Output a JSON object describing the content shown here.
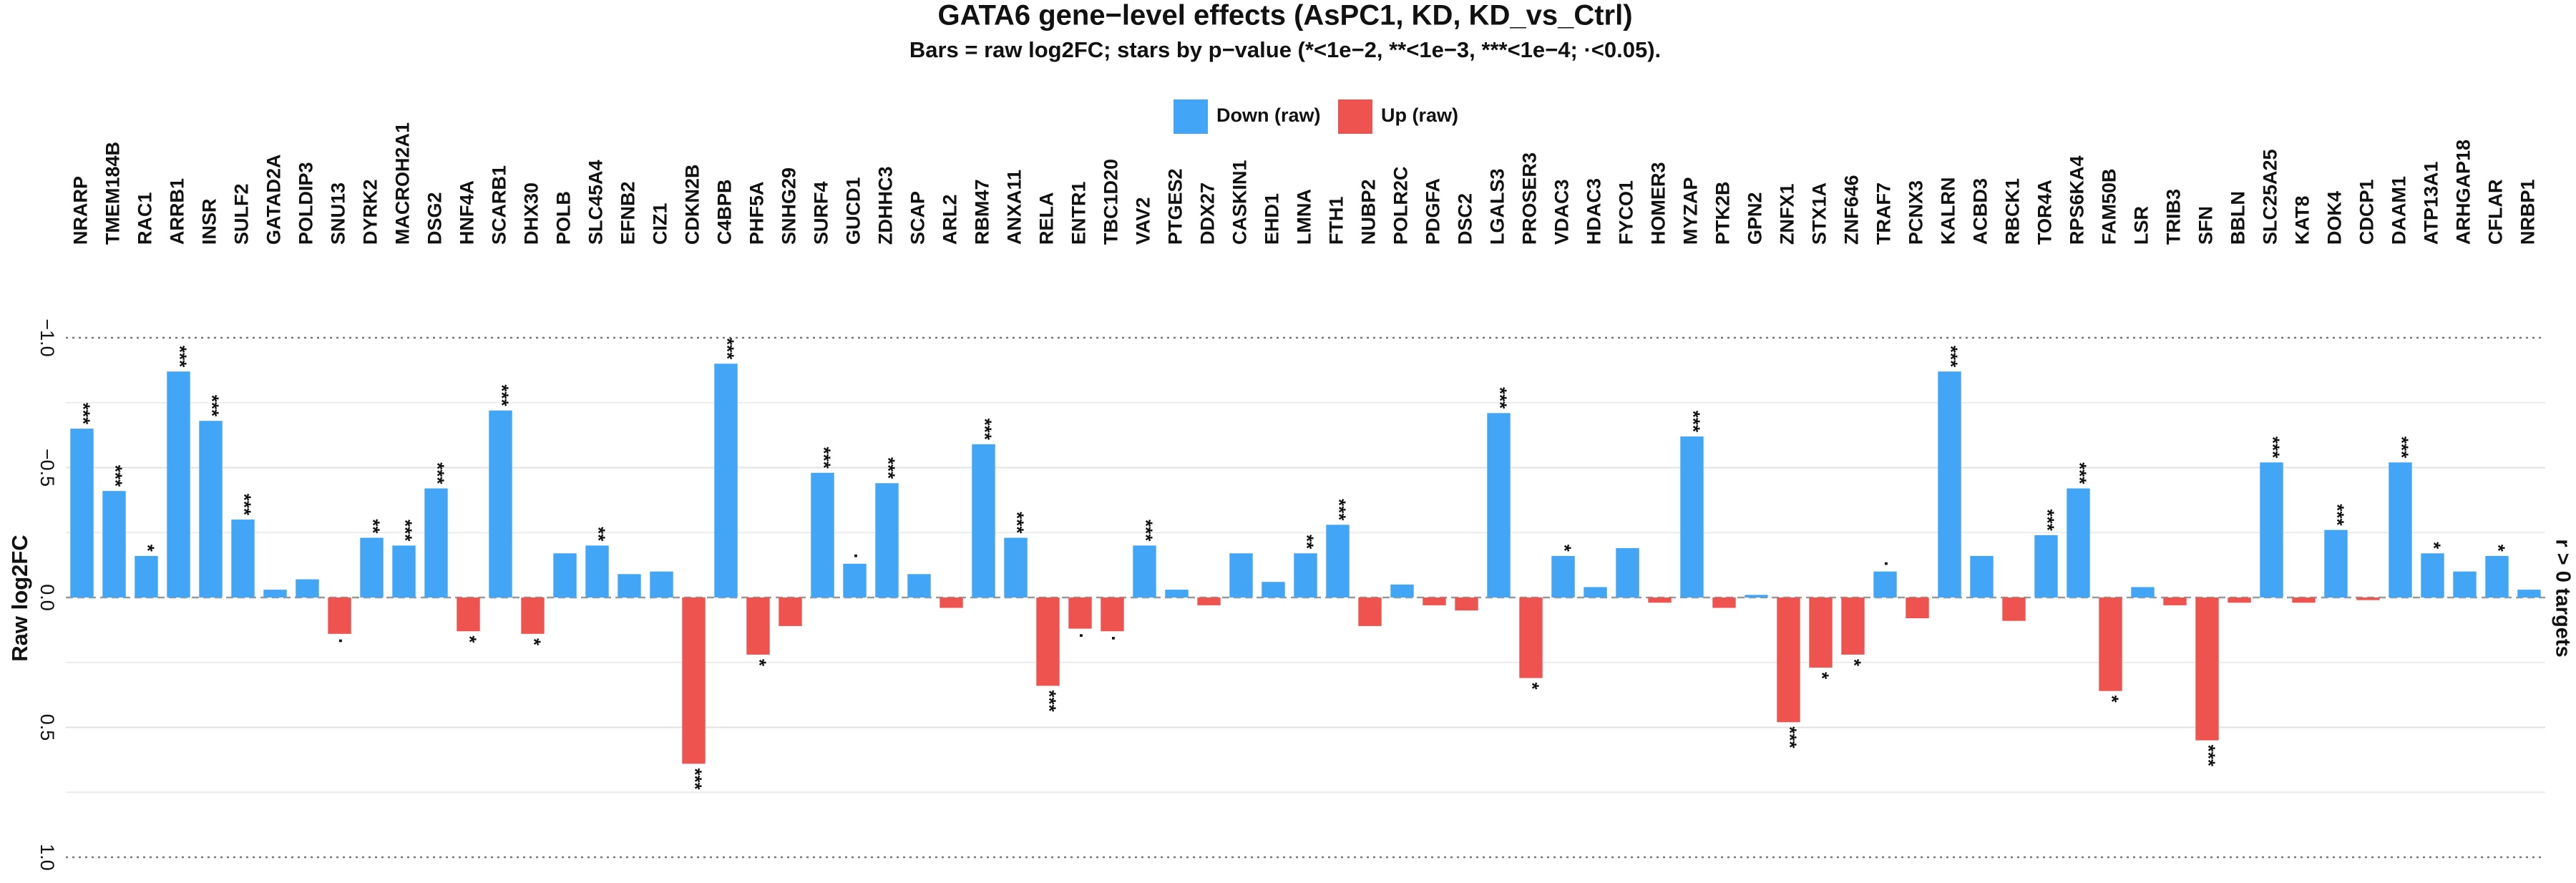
{
  "chart_data": {
    "type": "bar",
    "title": "GATA6 gene−level effects (AsPC1, KD, KD_vs_Ctrl)",
    "subtitle": "Bars = raw log2FC; stars by p−value (*<1e−2, **<1e−3, ***<1e−4; ·<0.05).",
    "y_label": "Raw log2FC",
    "right_label": "r > 0 targets",
    "legend": [
      {
        "name": "Down (raw)",
        "color": "#42a5f5"
      },
      {
        "name": "Up (raw)",
        "color": "#ef5350"
      }
    ],
    "categories": [
      "NRARP",
      "TMEM184B",
      "RAC1",
      "ARRB1",
      "INSR",
      "SULF2",
      "GATAD2A",
      "POLDIP3",
      "SNU13",
      "DYRK2",
      "MACROH2A1",
      "DSG2",
      "HNF4A",
      "SCARB1",
      "DHX30",
      "POLB",
      "SLC45A4",
      "EFNB2",
      "CIZ1",
      "CDKN2B",
      "C4BPB",
      "PHF5A",
      "SNHG29",
      "SURF4",
      "GUCD1",
      "ZDHHC3",
      "SCAP",
      "ARL2",
      "RBM47",
      "ANXA11",
      "RELA",
      "ENTR1",
      "TBC1D20",
      "VAV2",
      "PTGES2",
      "DDX27",
      "CASKIN1",
      "EHD1",
      "LMNA",
      "FTH1",
      "NUBP2",
      "POLR2C",
      "PDGFA",
      "DSC2",
      "LGALS3",
      "PROSER3",
      "VDAC3",
      "HDAC3",
      "FYCO1",
      "HOMER3",
      "MYZAP",
      "PTK2B",
      "GPN2",
      "ZNFX1",
      "STX1A",
      "ZNF646",
      "TRAF7",
      "PCNX3",
      "KALRN",
      "ACBD3",
      "RBCK1",
      "TOR4A",
      "RPS6KA4",
      "FAM50B",
      "LSR",
      "TRIB3",
      "SFN",
      "BBLN",
      "SLC25A25",
      "KAT8",
      "DOK4",
      "CDCP1",
      "DAAM1",
      "ATP13A1",
      "ARHGAP18",
      "CFLAR",
      "NRBP1"
    ],
    "values": [
      -0.65,
      -0.41,
      -0.16,
      -0.87,
      -0.68,
      -0.3,
      -0.03,
      -0.07,
      0.14,
      -0.23,
      -0.2,
      -0.42,
      0.13,
      -0.72,
      0.14,
      -0.17,
      -0.2,
      -0.09,
      -0.1,
      0.64,
      -0.9,
      0.22,
      0.11,
      -0.48,
      -0.13,
      -0.44,
      -0.09,
      0.04,
      -0.59,
      -0.23,
      0.34,
      0.12,
      0.13,
      -0.2,
      -0.03,
      0.03,
      -0.17,
      -0.06,
      -0.17,
      -0.28,
      0.11,
      -0.05,
      0.03,
      0.05,
      -0.71,
      0.31,
      -0.16,
      -0.04,
      -0.19,
      0.02,
      -0.62,
      0.04,
      -0.01,
      0.48,
      0.27,
      0.22,
      -0.1,
      0.08,
      -0.87,
      -0.16,
      0.09,
      -0.24,
      -0.42,
      0.36,
      -0.04,
      0.03,
      0.55,
      0.02,
      -0.52,
      0.02,
      -0.26,
      0.01,
      -0.52,
      -0.17,
      -0.1,
      -0.16,
      -0.03
    ],
    "stars": [
      "***",
      "***",
      "*",
      "***",
      "***",
      "***",
      null,
      null,
      "·",
      "**",
      "***",
      "***",
      "*",
      "***",
      "*",
      null,
      "**",
      null,
      null,
      "***",
      "***",
      "*",
      null,
      "***",
      "·",
      "***",
      null,
      null,
      "***",
      "***",
      "***",
      "·",
      "·",
      "***",
      null,
      null,
      null,
      null,
      "**",
      "***",
      null,
      null,
      null,
      null,
      "***",
      "*",
      "*",
      null,
      null,
      null,
      "***",
      null,
      null,
      "***",
      "*",
      "*",
      "·",
      null,
      "***",
      null,
      null,
      "***",
      "***",
      "*",
      null,
      null,
      "***",
      null,
      "***",
      null,
      "***",
      null,
      "***",
      "*",
      null,
      "*",
      null
    ],
    "ylim": [
      -1,
      1
    ],
    "yticks": [
      {
        "value": -1,
        "label": "−1.0"
      },
      {
        "value": -0.5,
        "label": "−0.5"
      },
      {
        "value": 0,
        "label": "0.0"
      },
      0.5,
      {
        "value": 1,
        "label": "1.0"
      }
    ],
    "y_inverted": true,
    "grid": true
  }
}
